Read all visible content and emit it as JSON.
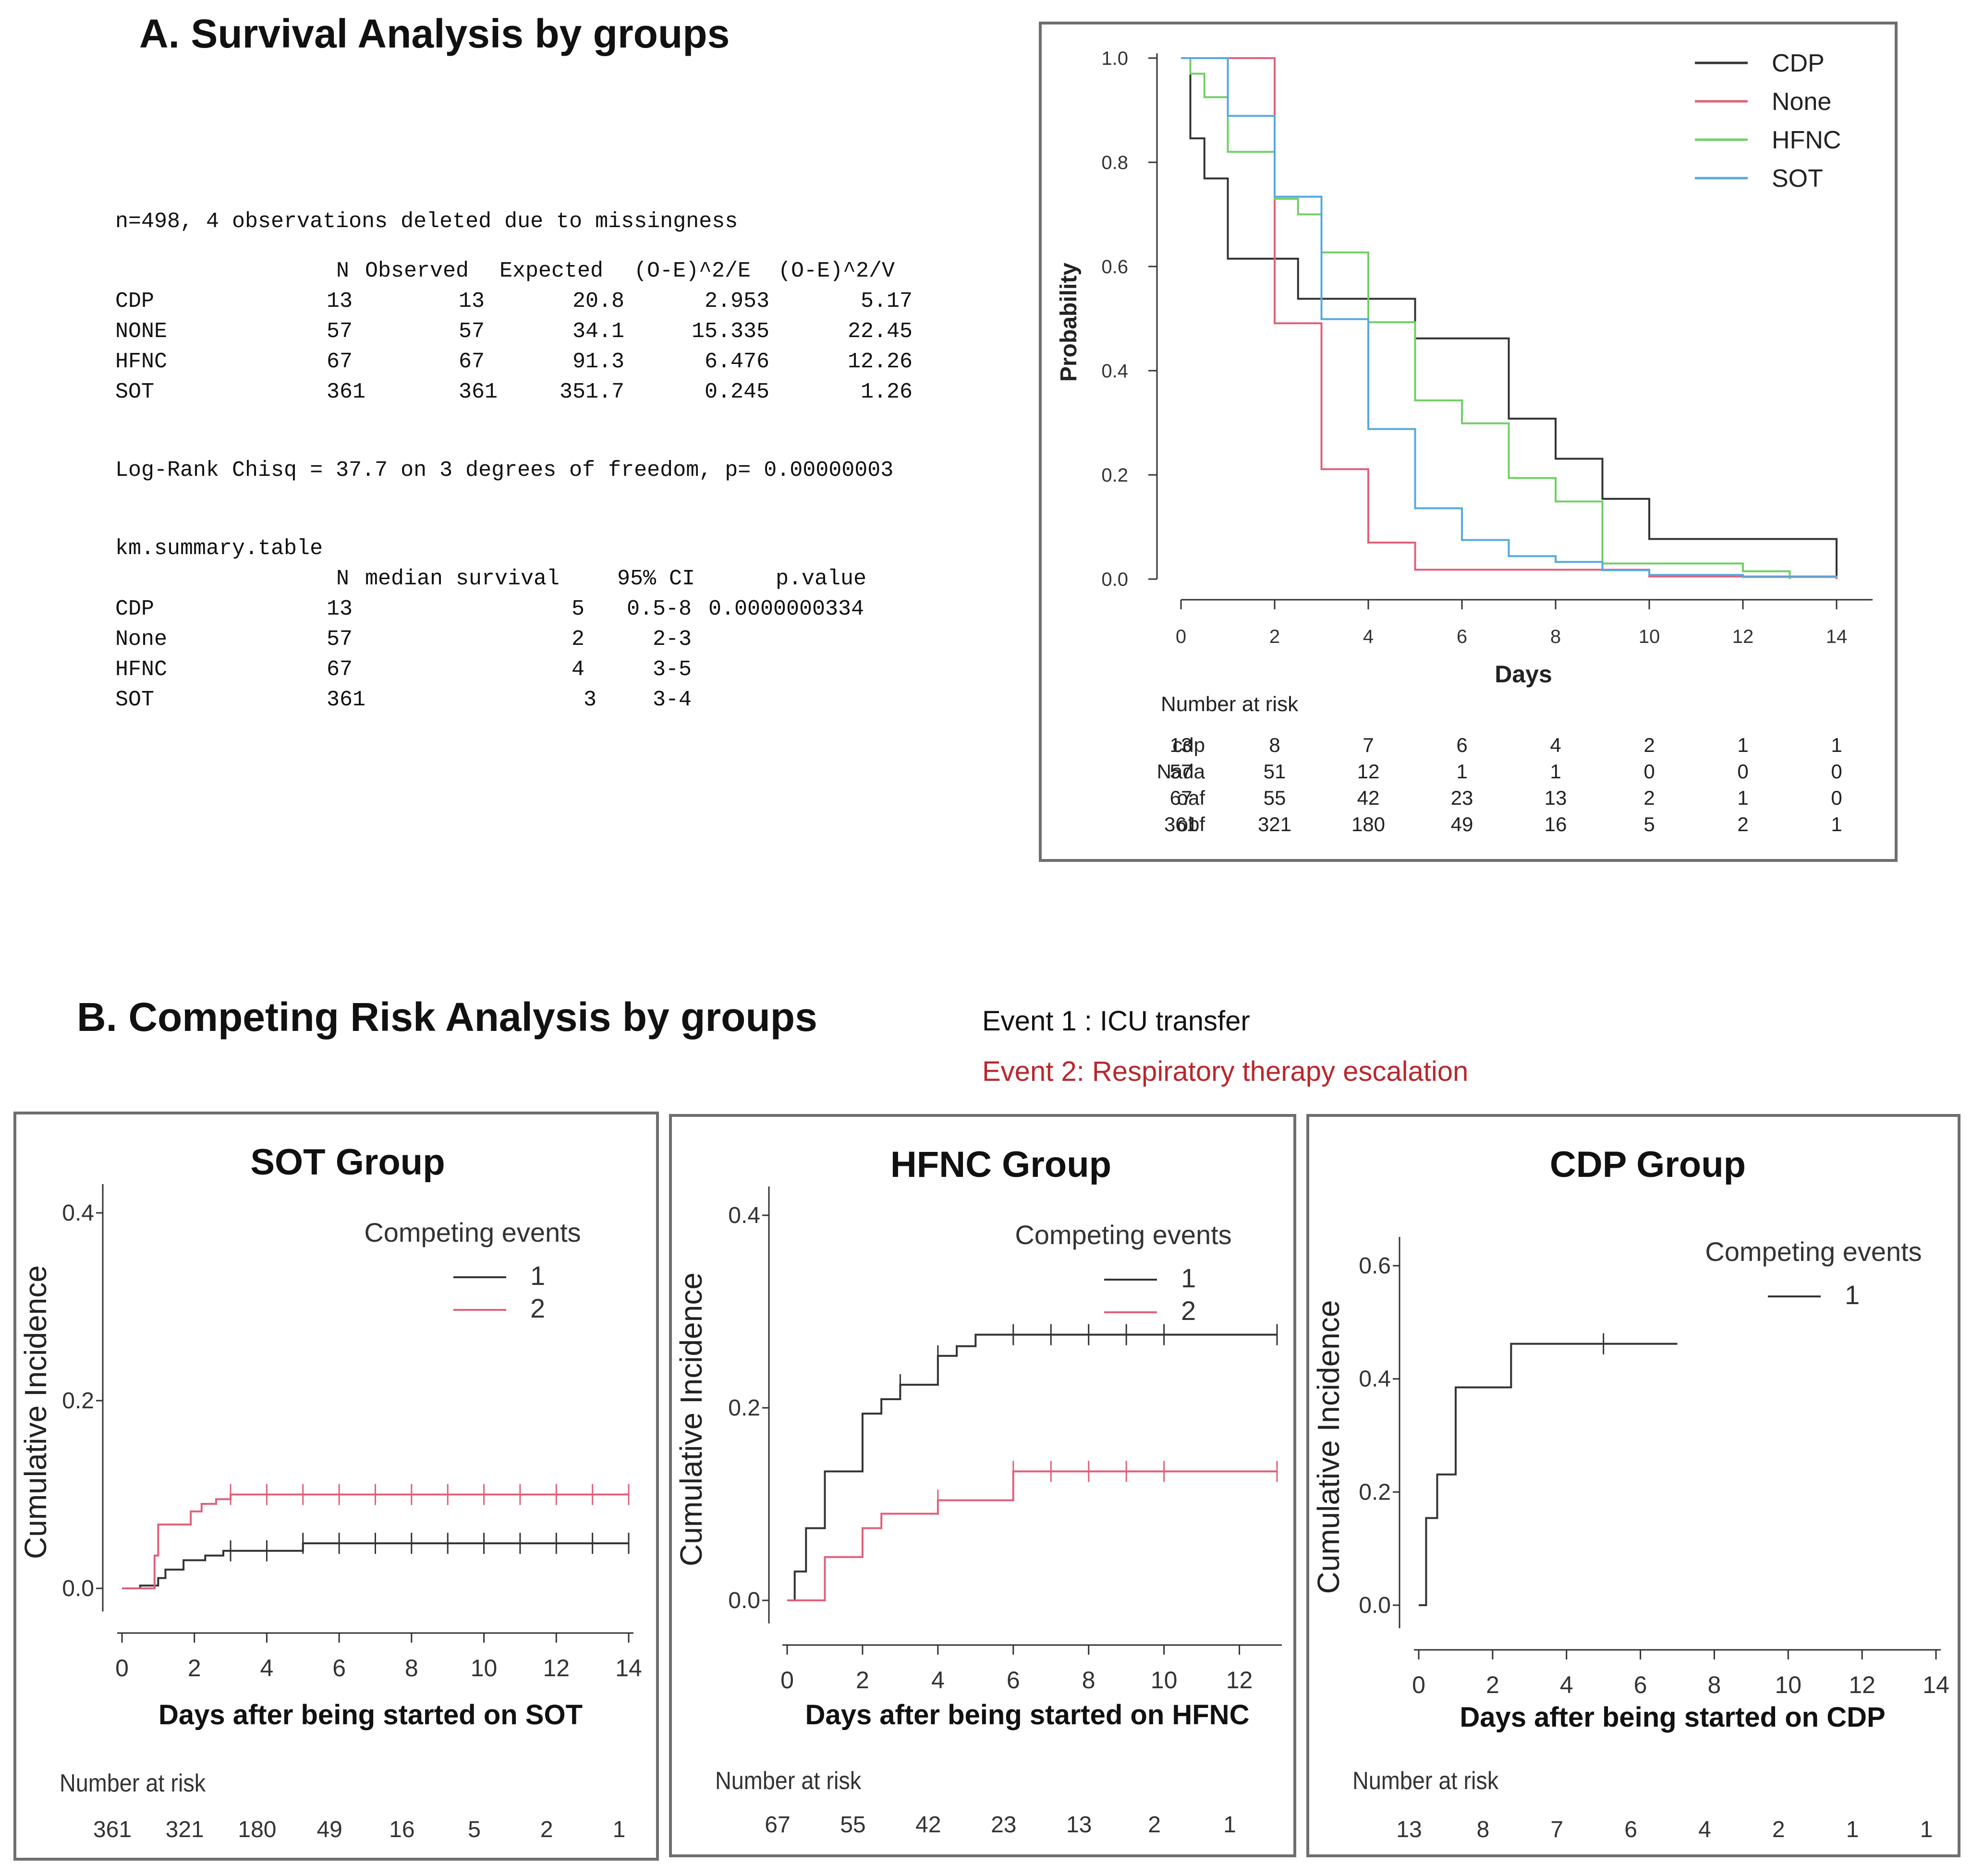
{
  "section_a": {
    "heading": "A. Survival Analysis by groups",
    "console": {
      "line1": "n=498, 4 observations deleted due to missingness",
      "logrank_header": [
        "N",
        "Observed",
        "Expected",
        "(O-E)^2/E",
        "(O-E)^2/V"
      ],
      "logrank_rows": [
        [
          "CDP",
          "13",
          "13",
          "20.8",
          "2.953",
          "5.17"
        ],
        [
          "NONE",
          "57",
          "57",
          "34.1",
          "15.335",
          "22.45"
        ],
        [
          "HFNC",
          "67",
          "67",
          "91.3",
          "6.476",
          "12.26"
        ],
        [
          "SOT",
          "361",
          "361",
          "351.7",
          "0.245",
          "1.26"
        ]
      ],
      "logrank_result": "Log-Rank Chisq = 37.7 on 3 degrees of freedom, p= 0.00000003",
      "km_title": "km.summary.table",
      "km_header": [
        "N",
        "median survival",
        "95% CI",
        "p.value"
      ],
      "km_rows": [
        [
          "CDP",
          "13",
          "5",
          "0.5-8",
          "0.0000000334"
        ],
        [
          "None",
          "57",
          "2",
          "2-3",
          ""
        ],
        [
          "HFNC",
          "67",
          "4",
          "3-5",
          ""
        ],
        [
          "SOT",
          "361",
          "3",
          "3-4",
          ""
        ]
      ]
    }
  },
  "section_b": {
    "heading": "B. Competing Risk Analysis by groups",
    "event1": "Event 1 :  ICU transfer",
    "event2": "Event 2:  Respiratory therapy escalation"
  },
  "colors": {
    "black": "#333333",
    "red": "#e0607a",
    "green": "#6fcf63",
    "blue": "#55a8e0",
    "panel_border": "#6e6e6e"
  },
  "chart_data": [
    {
      "type": "line",
      "subtype": "kaplan-meier",
      "ylabel": "Probability",
      "xlabel": "Days",
      "xlim": [
        0,
        14
      ],
      "ylim": [
        0,
        1
      ],
      "xticks": [
        "0",
        "2",
        "4",
        "6",
        "8",
        "10",
        "12",
        "14"
      ],
      "yticks": [
        "0.0",
        "0.2",
        "0.4",
        "0.6",
        "0.8",
        "1.0"
      ],
      "legend": [
        "CDP",
        "None",
        "HFNC",
        "SOT"
      ],
      "series": [
        {
          "name": "CDP",
          "color": "#333333",
          "x": [
            0,
            0.2,
            0.5,
            1,
            2.5,
            5,
            7,
            8,
            9,
            10,
            14
          ],
          "y": [
            1.0,
            0.846,
            0.769,
            0.615,
            0.538,
            0.462,
            0.308,
            0.231,
            0.154,
            0.077,
            0.0
          ]
        },
        {
          "name": "None",
          "color": "#e0607a",
          "x": [
            0,
            1,
            2,
            3,
            4,
            5,
            8,
            10,
            14
          ],
          "y": [
            1.0,
            1.0,
            0.491,
            0.211,
            0.07,
            0.018,
            0.018,
            0.005,
            0.0
          ]
        },
        {
          "name": "HFNC",
          "color": "#6fcf63",
          "x": [
            0,
            0.2,
            0.5,
            1,
            2,
            2.5,
            3,
            4,
            5,
            6,
            7,
            8,
            9,
            10,
            12,
            13
          ],
          "y": [
            1.0,
            0.97,
            0.925,
            0.82,
            0.73,
            0.7,
            0.627,
            0.493,
            0.343,
            0.299,
            0.194,
            0.149,
            0.03,
            0.03,
            0.015,
            0.0
          ]
        },
        {
          "name": "SOT",
          "color": "#55a8e0",
          "x": [
            0,
            1,
            2,
            3,
            4,
            5,
            6,
            7,
            8,
            9,
            10,
            12,
            14
          ],
          "y": [
            1.0,
            0.889,
            0.734,
            0.499,
            0.288,
            0.136,
            0.075,
            0.044,
            0.033,
            0.017,
            0.008,
            0.004,
            0.002
          ]
        }
      ],
      "risk_table": {
        "title": "Number at risk",
        "times": [
          "0",
          "2",
          "4",
          "6",
          "8",
          "10",
          "12",
          "14"
        ],
        "rows": [
          {
            "label": "cdp",
            "values": [
              "13",
              "8",
              "7",
              "6",
              "4",
              "2",
              "1",
              "1"
            ]
          },
          {
            "label": "Nada",
            "values": [
              "57",
              "51",
              "12",
              "1",
              "1",
              "0",
              "0",
              "0"
            ]
          },
          {
            "label": "oaf",
            "values": [
              "67",
              "55",
              "42",
              "23",
              "13",
              "2",
              "1",
              "0"
            ]
          },
          {
            "label": "obf",
            "values": [
              "361",
              "321",
              "180",
              "49",
              "16",
              "5",
              "2",
              "1"
            ]
          }
        ]
      }
    },
    {
      "type": "line",
      "subtype": "cumulative-incidence",
      "title": "SOT Group",
      "xlabel": "Days after being started on SOT",
      "ylabel": "Cumulative Incidence",
      "xlim": [
        0,
        14
      ],
      "ylim": [
        0,
        0.4
      ],
      "xticks": [
        "0",
        "2",
        "4",
        "6",
        "8",
        "10",
        "12",
        "14"
      ],
      "yticks": [
        "0.0",
        "0.2",
        "0.4"
      ],
      "legend_title": "Competing events",
      "legend": [
        "1",
        "2"
      ],
      "series": [
        {
          "name": "1",
          "color": "#333333",
          "x": [
            0,
            0.5,
            1,
            1.2,
            1.7,
            2.3,
            2.8,
            5,
            14
          ],
          "y": [
            0,
            0.003,
            0.011,
            0.02,
            0.03,
            0.035,
            0.04,
            0.048,
            0.048
          ],
          "censor": [
            3,
            4,
            5,
            6,
            7,
            8,
            9,
            10,
            11,
            12,
            13,
            14
          ]
        },
        {
          "name": "2",
          "color": "#e0607a",
          "x": [
            0,
            0.5,
            0.9,
            1.0,
            1.9,
            2.2,
            2.6,
            3,
            14
          ],
          "y": [
            0,
            0,
            0.035,
            0.068,
            0.082,
            0.09,
            0.095,
            0.1,
            0.1
          ],
          "censor": [
            3,
            4,
            5,
            6,
            7,
            8,
            9,
            10,
            11,
            12,
            13,
            14
          ]
        }
      ],
      "risk_table": {
        "title": "Number at risk",
        "values": [
          "361",
          "321",
          "180",
          "49",
          "16",
          "5",
          "2",
          "1"
        ]
      }
    },
    {
      "type": "line",
      "subtype": "cumulative-incidence",
      "title": "HFNC Group",
      "xlabel": "Days after being started on HFNC",
      "ylabel": "Cumulative Incidence",
      "xlim": [
        0,
        13
      ],
      "ylim": [
        0,
        0.4
      ],
      "xticks": [
        "0",
        "2",
        "4",
        "6",
        "8",
        "10",
        "12"
      ],
      "yticks": [
        "0.0",
        "0.2",
        "0.4"
      ],
      "legend_title": "Competing events",
      "legend": [
        "1",
        "2"
      ],
      "series": [
        {
          "name": "1",
          "color": "#333333",
          "x": [
            0,
            0.2,
            0.5,
            1,
            2,
            2.5,
            3,
            4,
            4.5,
            5,
            13
          ],
          "y": [
            0,
            0.03,
            0.075,
            0.134,
            0.194,
            0.209,
            0.224,
            0.254,
            0.264,
            0.276,
            0.276
          ],
          "censor": [
            3,
            4,
            6,
            7,
            8,
            9,
            10,
            13
          ]
        },
        {
          "name": "2",
          "color": "#e0607a",
          "x": [
            0,
            1,
            2,
            2.5,
            3,
            4,
            6,
            13
          ],
          "y": [
            0,
            0.045,
            0.075,
            0.09,
            0.09,
            0.104,
            0.134,
            0.134
          ],
          "censor": [
            4,
            6,
            7,
            8,
            9,
            10,
            13
          ]
        }
      ],
      "risk_table": {
        "title": "Number at risk",
        "values": [
          "67",
          "55",
          "42",
          "23",
          "13",
          "2",
          "1"
        ]
      }
    },
    {
      "type": "line",
      "subtype": "cumulative-incidence",
      "title": "CDP Group",
      "xlabel": "Days after being started on CDP",
      "ylabel": "Cumulative Incidence",
      "xlim": [
        0,
        14
      ],
      "ylim": [
        0,
        0.6
      ],
      "xticks": [
        "0",
        "2",
        "4",
        "6",
        "8",
        "10",
        "12",
        "14"
      ],
      "yticks": [
        "0.0",
        "0.2",
        "0.4",
        "0.6"
      ],
      "legend_title": "Competing events",
      "legend": [
        "1"
      ],
      "series": [
        {
          "name": "1",
          "color": "#333333",
          "x": [
            0,
            0.2,
            0.5,
            1,
            2.5,
            7
          ],
          "y": [
            0,
            0.154,
            0.231,
            0.385,
            0.462,
            0.462
          ],
          "censor": [
            5
          ]
        }
      ],
      "risk_table": {
        "title": "Number at risk",
        "values": [
          "13",
          "8",
          "7",
          "6",
          "4",
          "2",
          "1",
          "1"
        ]
      }
    }
  ]
}
